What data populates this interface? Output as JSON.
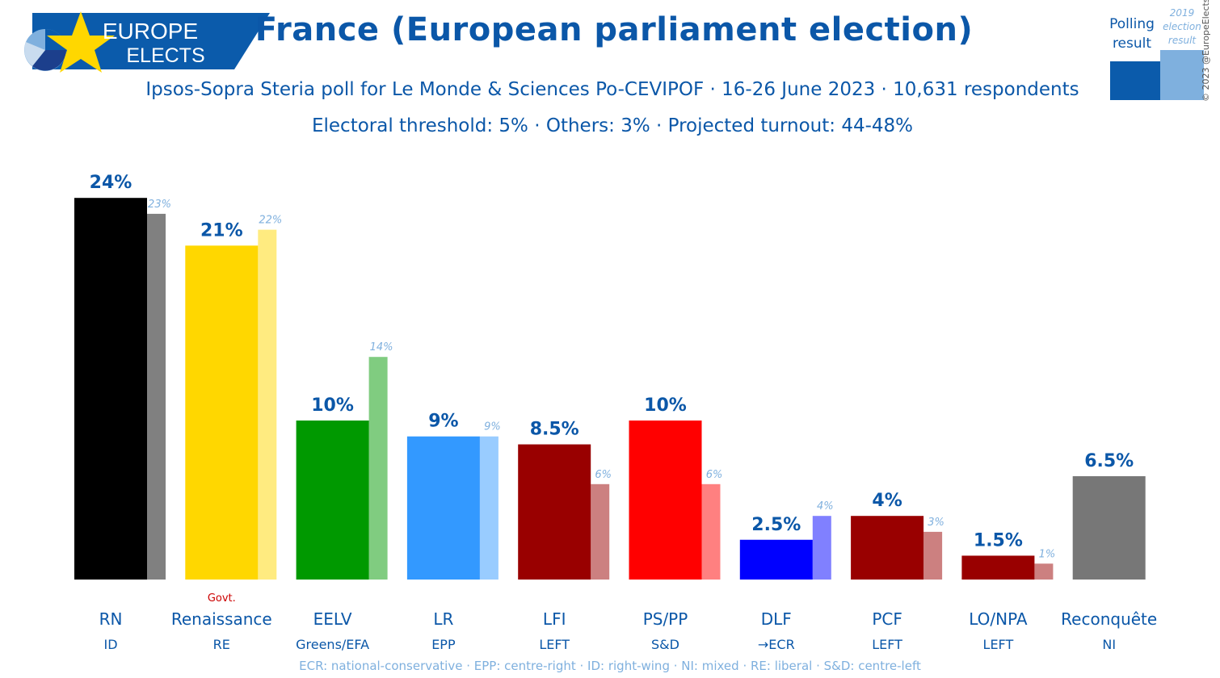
{
  "header": {
    "logo_line1": "EUROPE",
    "logo_line2": "ELECTS",
    "title": "France (European parliament election)",
    "subtitle": "Ipsos-Sopra Steria poll for Le Monde & Sciences Po-CEVIPOF · 16-26 June 2023 · 10,631 respondents",
    "subtitle2": "Electoral threshold: 5% · Others: 3% · Projected turnout: 44-48%"
  },
  "legend": {
    "poll_label": "Polling result",
    "election_label": "2019 election result",
    "poll_color": "#0b5bab",
    "election_color": "#7fb0de"
  },
  "copyright": "© 2023 @EuropeElects",
  "footnote": "ECR: national-conservative · EPP: centre-right · ID: right-wing · NI: mixed · RE: liberal · S&D: centre-left",
  "chart_data": {
    "type": "bar",
    "categories": [
      "RN",
      "Renaissance",
      "EELV",
      "LR",
      "LFI",
      "PS/PP",
      "DLF",
      "PCF",
      "LO/NPA",
      "Reconquête"
    ],
    "groups": [
      "ID",
      "RE",
      "Greens/EFA",
      "EPP",
      "LEFT",
      "S&D",
      "→ECR",
      "LEFT",
      "LEFT",
      "NI"
    ],
    "notes": [
      "",
      "Govt.",
      "",
      "",
      "",
      "",
      "",
      "",
      "",
      ""
    ],
    "series": [
      {
        "name": "Polling result",
        "values": [
          24,
          21,
          10,
          9,
          8.5,
          10,
          2.5,
          4,
          1.5,
          6.5
        ],
        "labels": [
          "24%",
          "21%",
          "10%",
          "9%",
          "8.5%",
          "10%",
          "2.5%",
          "4%",
          "1.5%",
          "6.5%"
        ],
        "colors": [
          "#000000",
          "#ffd700",
          "#009900",
          "#3399ff",
          "#990000",
          "#ff0000",
          "#0000ff",
          "#990000",
          "#990000",
          "#777777"
        ]
      },
      {
        "name": "2019 election result",
        "values": [
          23,
          22,
          14,
          9,
          6,
          6,
          4,
          3,
          1,
          null
        ],
        "labels": [
          "23%",
          "22%",
          "14%",
          "9%",
          "6%",
          "6%",
          "4%",
          "3%",
          "1%",
          ""
        ],
        "colors": [
          "#808080",
          "#ffeb80",
          "#80cc80",
          "#99ccff",
          "#cc8080",
          "#ff8080",
          "#8080ff",
          "#cc8080",
          "#cc8080",
          "#bbbbbb"
        ]
      }
    ],
    "ylim": [
      0,
      25
    ]
  }
}
